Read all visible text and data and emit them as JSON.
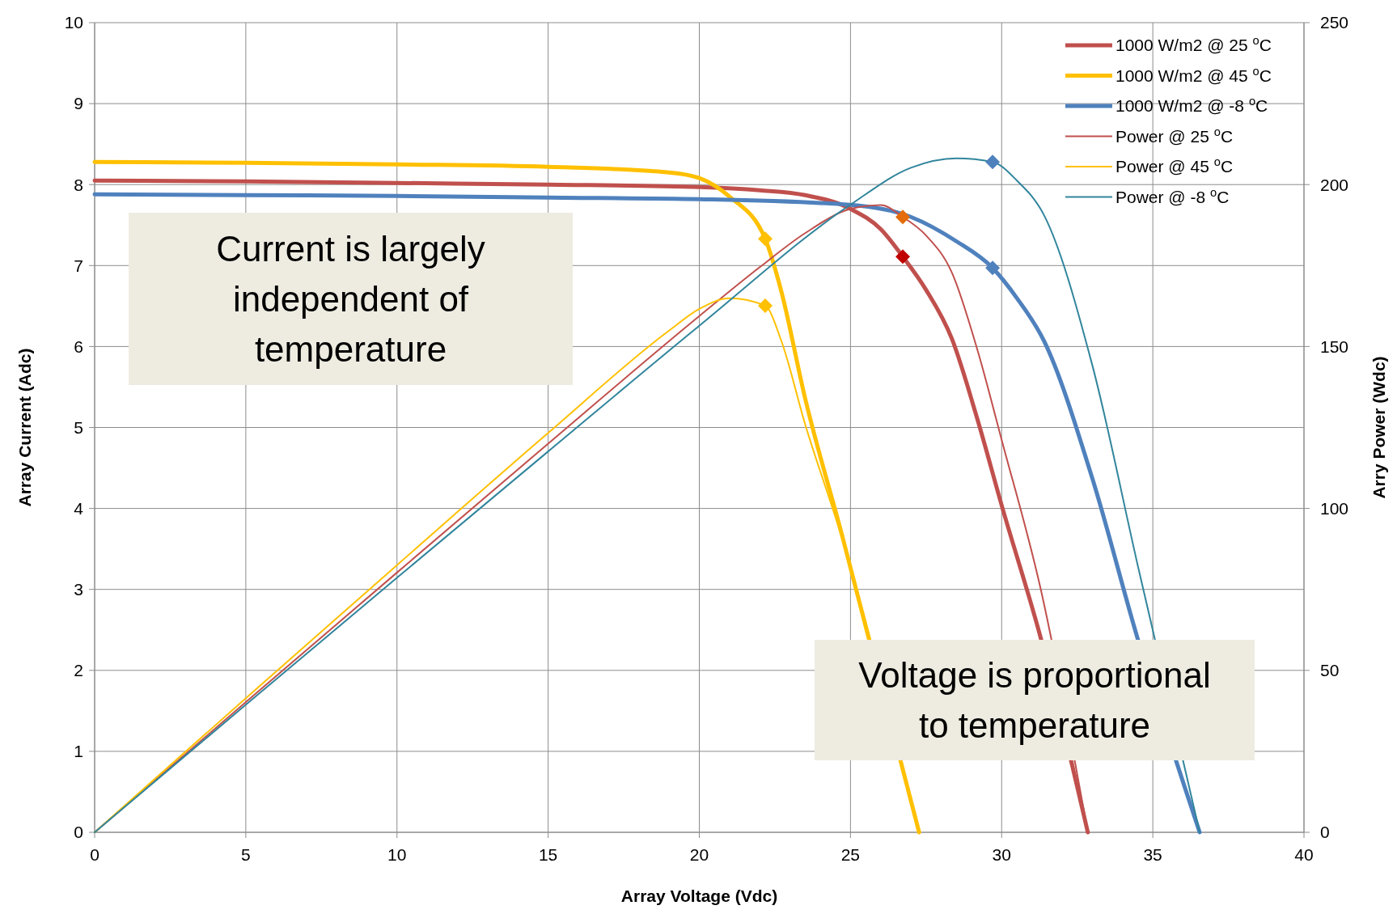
{
  "chart_data": {
    "type": "line",
    "xlabel": "Array Voltage (Vdc)",
    "ylabel": "Array Current (Adc)",
    "y2label": "Arry Power (Wdc)",
    "xlim": [
      0,
      40
    ],
    "xticks": [
      0,
      5,
      10,
      15,
      20,
      25,
      30,
      35,
      40
    ],
    "ylim": [
      0,
      10
    ],
    "yticks": [
      0,
      1,
      2,
      3,
      4,
      5,
      6,
      7,
      8,
      9,
      10
    ],
    "y2lim": [
      0,
      250
    ],
    "y2ticks": [
      0,
      50,
      100,
      150,
      200,
      250
    ],
    "grid": true,
    "legend": "top right",
    "marker": "none",
    "line_style": "solid",
    "series": [
      {
        "name": "1000 W/m2  @ 25 $^{o}$C",
        "color": "#c0504d",
        "x": [
          0,
          5,
          10,
          15,
          20,
          22,
          23.5,
          25,
          26,
          26.73,
          27.5,
          28.35,
          29.2,
          30,
          31.3,
          32.85
        ],
        "values": [
          8.05,
          8.04,
          8.02,
          8.0,
          7.97,
          7.93,
          7.87,
          7.7,
          7.45,
          7.11,
          6.7,
          6.1,
          5.1,
          4.04,
          2.39,
          0
        ]
      },
      {
        "name": "1000 W/m2  @ 45 $^{o}$C",
        "color": "#ffc000",
        "x": [
          0,
          5,
          10,
          15,
          19,
          20,
          21,
          22.18,
          22.7,
          23.5,
          24.7,
          27.27
        ],
        "values": [
          8.28,
          8.27,
          8.25,
          8.22,
          8.15,
          8.08,
          7.85,
          7.33,
          6.7,
          5.36,
          3.7,
          0
        ]
      },
      {
        "name": "1000 W/m2  @ -8 $^{o}$C",
        "color": "#4f81bd",
        "x": [
          0,
          5,
          10,
          15,
          20,
          25,
          27,
          28.5,
          29.7,
          30.5,
          31.4,
          33,
          34.5,
          36.55
        ],
        "values": [
          7.88,
          7.87,
          7.86,
          7.84,
          7.82,
          7.75,
          7.6,
          7.3,
          6.97,
          6.6,
          6.07,
          4.37,
          2.39,
          0
        ]
      },
      {
        "name": "Power @ 25 $^{o}$C",
        "color": "#c0504d",
        "axis": "y2",
        "x": [
          0,
          5,
          10,
          15,
          20,
          22,
          23.5,
          25,
          26,
          26.73,
          27.5,
          28.35,
          29.2,
          30,
          31.3,
          32.85
        ],
        "values": [
          0,
          40.2,
          80.2,
          120,
          159.4,
          174.5,
          185,
          192.5,
          193.7,
          190,
          184.3,
          172.9,
          148.9,
          121.2,
          74.8,
          0
        ]
      },
      {
        "name": "Power @ 45 $^{o}$C",
        "color": "#ffc000",
        "axis": "y2",
        "x": [
          0,
          5,
          10,
          15,
          19,
          20,
          21,
          22.18,
          22.7,
          23.5,
          24.7,
          27.27
        ],
        "values": [
          0,
          41.4,
          82.5,
          123.3,
          154.9,
          161.6,
          164.9,
          162.6,
          152.1,
          126,
          91.4,
          0
        ]
      },
      {
        "name": "Power @ -8 $^{o}$C",
        "color": "#31859c",
        "axis": "y2",
        "x": [
          0,
          5,
          10,
          15,
          20,
          25,
          27,
          28.5,
          29.7,
          30.5,
          31.4,
          33,
          34.5,
          36.55
        ],
        "values": [
          0,
          39.4,
          78.6,
          117.6,
          156.4,
          193.8,
          205.2,
          208.1,
          207,
          201.3,
          190.6,
          144.2,
          82.5,
          0
        ]
      },
      {
        "type": "scatter",
        "marker": "diamond",
        "x": [
          26.73,
          22.18,
          29.7
        ],
        "values": [
          7.11,
          7.33,
          6.97
        ],
        "colors": [
          "#c00000",
          "#ffc000",
          "#4f81bd"
        ]
      },
      {
        "type": "scatter",
        "marker": "diamond",
        "axis": "y2",
        "x": [
          26.73,
          22.18,
          29.7
        ],
        "values": [
          190,
          162.6,
          207
        ],
        "colors": [
          "#e46c0a",
          "#ffc000",
          "#4f81bd"
        ]
      }
    ],
    "annotations": [
      "Current is largely independent of temperature",
      "Voltage is proportional to temperature"
    ]
  }
}
